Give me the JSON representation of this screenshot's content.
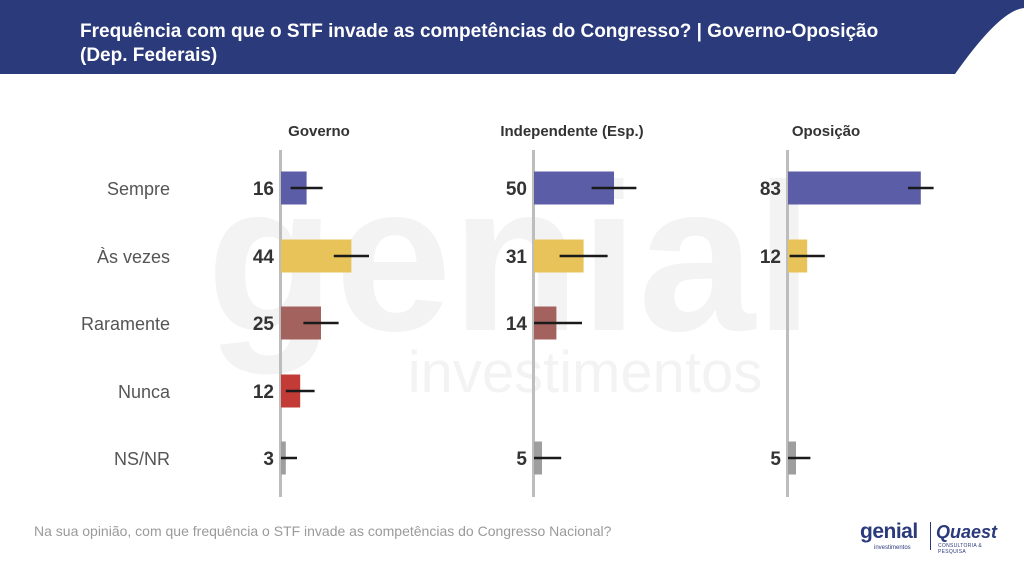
{
  "header": {
    "title_line1": "Frequência com que o STF invade as competências do Congresso? | Governo-Oposição",
    "title_line2": "(Dep. Federais)",
    "bg_color": "#2b3a7a"
  },
  "footnote": "Na sua opinião, com que frequência o STF invade as competências do Congresso Nacional?",
  "logos": {
    "genial": "genial",
    "genial_sub": "investimentos",
    "quaest": "Quaest",
    "quaest_sub": "CONSULTORIA & PESQUISA"
  },
  "watermark": {
    "big": "genial",
    "small": "investimentos"
  },
  "chart_data": {
    "type": "bar",
    "orientation": "horizontal",
    "categories": [
      "Sempre",
      "Às vezes",
      "Raramente",
      "Nunca",
      "NS/NR"
    ],
    "category_colors": [
      "#5b5ea6",
      "#e8c35a",
      "#a3625d",
      "#c23b37",
      "#9e9e9e"
    ],
    "panels": [
      {
        "name": "Governo",
        "values": [
          16,
          44,
          25,
          12,
          3
        ],
        "error_high": [
          26,
          55,
          36,
          21,
          10
        ]
      },
      {
        "name": "Independente (Esp.)",
        "values": [
          50,
          31,
          14,
          null,
          5
        ],
        "error_high": [
          64,
          46,
          30,
          null,
          17
        ]
      },
      {
        "name": "Oposição",
        "values": [
          83,
          12,
          null,
          null,
          5
        ],
        "error_high": [
          91,
          23,
          null,
          null,
          14
        ]
      }
    ],
    "xlim": [
      0,
      100
    ]
  }
}
